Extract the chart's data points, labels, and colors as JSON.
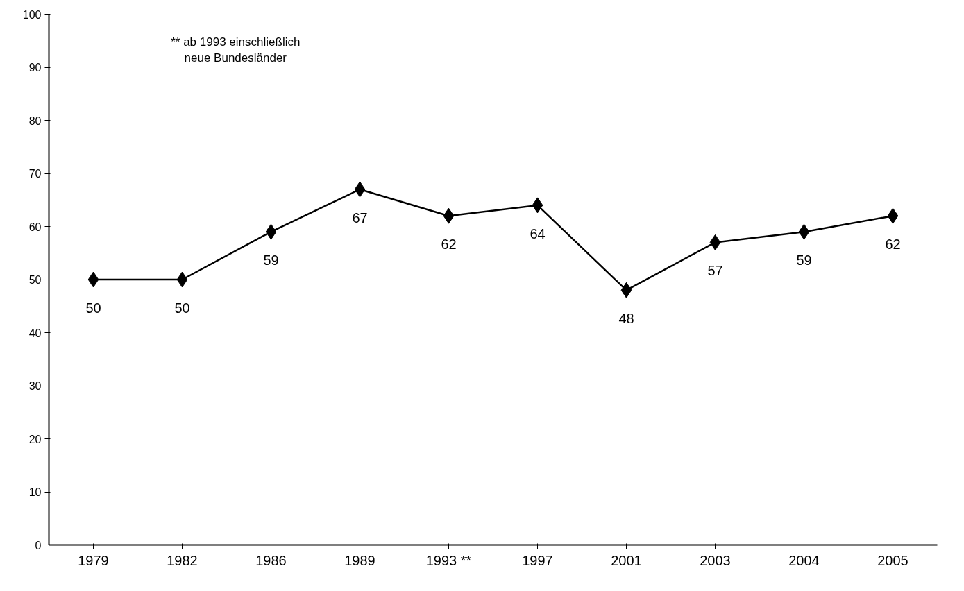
{
  "chart_data": {
    "type": "line",
    "categories": [
      "1979",
      "1982",
      "1986",
      "1989",
      "1993 **",
      "1997",
      "2001",
      "2003",
      "2004",
      "2005"
    ],
    "series": [
      {
        "color": "#000000",
        "values": [
          50,
          50,
          59,
          67,
          62,
          64,
          48,
          57,
          59,
          62
        ]
      }
    ],
    "ylim": [
      0,
      100
    ],
    "yticks": [
      0,
      10,
      20,
      30,
      40,
      50,
      60,
      70,
      80,
      90,
      100
    ],
    "annotations": [
      "** ab 1993 einschließlich\nneue Bundesländer"
    ],
    "data_labels": true,
    "marker": "diamond",
    "line_style": "solid",
    "grid": false
  }
}
